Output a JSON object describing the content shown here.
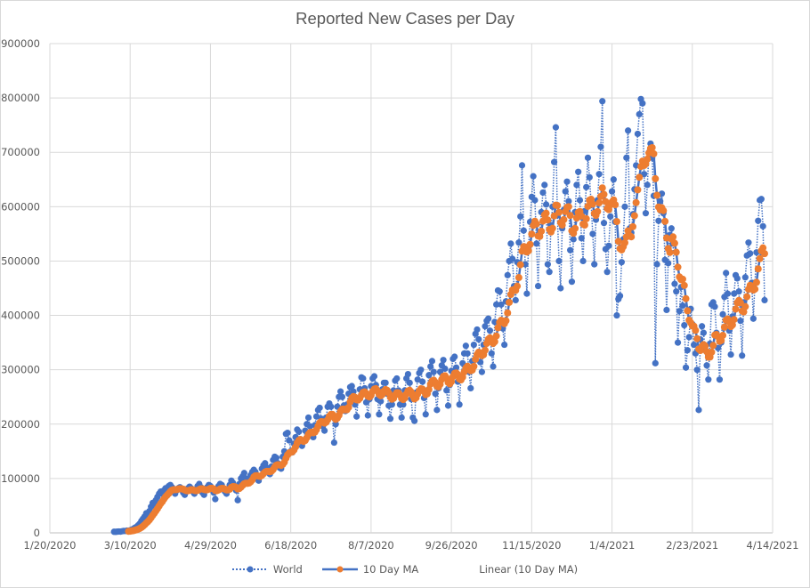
{
  "chart_data": {
    "type": "line",
    "title": "Reported New Cases per Day",
    "xlabel": "",
    "ylabel": "",
    "ylim": [
      0,
      900000
    ],
    "y_ticks": [
      "0",
      "100000",
      "200000",
      "300000",
      "400000",
      "500000",
      "600000",
      "700000",
      "800000",
      "900000"
    ],
    "y_tick_values": [
      0,
      100000,
      200000,
      300000,
      400000,
      500000,
      600000,
      700000,
      800000,
      900000
    ],
    "x_ticks": [
      "1/20/2020",
      "3/10/2020",
      "4/29/2020",
      "6/18/2020",
      "8/7/2020",
      "9/26/2020",
      "11/15/2020",
      "1/4/2021",
      "2/23/2021",
      "4/14/2021"
    ],
    "x_tick_days": [
      0,
      50,
      100,
      150,
      200,
      250,
      300,
      350,
      400,
      450
    ],
    "xlim_days": [
      0,
      450
    ],
    "x_origin_date": "1/20/2020",
    "grid": true,
    "legend_position": "bottom",
    "series": [
      {
        "name": "World",
        "style": "dotted line with circle markers",
        "color": "#4472C4",
        "start_day": 40,
        "values": [
          2000,
          1800,
          2200,
          2500,
          2300,
          3000,
          3600,
          3400,
          4200,
          3800,
          4800,
          6000,
          7500,
          9500,
          11000,
          14000,
          17000,
          22000,
          26000,
          30000,
          36000,
          33000,
          40000,
          48000,
          55000,
          52000,
          60000,
          66000,
          72000,
          76000,
          72000,
          78000,
          82000,
          80000,
          86000,
          88000,
          84000,
          76000,
          72000,
          78000,
          82000,
          84000,
          80000,
          74000,
          70000,
          76000,
          82000,
          85000,
          82000,
          76000,
          72000,
          78000,
          86000,
          90000,
          84000,
          74000,
          70000,
          78000,
          84000,
          88000,
          86000,
          80000,
          74000,
          62000,
          80000,
          86000,
          90000,
          88000,
          82000,
          76000,
          72000,
          80000,
          88000,
          96000,
          92000,
          84000,
          78000,
          60000,
          90000,
          100000,
          104000,
          110000,
          100000,
          92000,
          98000,
          106000,
          112000,
          116000,
          112000,
          102000,
          96000,
          104000,
          118000,
          124000,
          128000,
          120000,
          112000,
          108000,
          122000,
          134000,
          140000,
          138000,
          128000,
          120000,
          118000,
          140000,
          150000,
          182000,
          184000,
          170000,
          150000,
          148000,
          164000,
          176000,
          190000,
          186000,
          168000,
          160000,
          170000,
          188000,
          200000,
          212000,
          196000,
          184000,
          176000,
          198000,
          214000,
          226000,
          230000,
          210000,
          196000,
          188000,
          212000,
          232000,
          238000,
          232000,
          214000,
          166000,
          200000,
          232000,
          250000,
          260000,
          250000,
          234000,
          224000,
          236000,
          256000,
          268000,
          270000,
          260000,
          236000,
          214000,
          246000,
          264000,
          286000,
          284000,
          266000,
          240000,
          216000,
          246000,
          270000,
          284000,
          288000,
          272000,
          246000,
          218000,
          242000,
          264000,
          276000,
          276000,
          256000,
          234000,
          210000,
          236000,
          262000,
          280000,
          284000,
          262000,
          236000,
          212000,
          236000,
          262000,
          284000,
          292000,
          276000,
          246000,
          212000,
          206000,
          258000,
          282000,
          294000,
          300000,
          278000,
          248000,
          218000,
          262000,
          290000,
          306000,
          316000,
          296000,
          256000,
          226000,
          266000,
          296000,
          308000,
          318000,
          302000,
          262000,
          234000,
          272000,
          298000,
          320000,
          324000,
          304000,
          278000,
          236000,
          286000,
          312000,
          330000,
          344000,
          330000,
          296000,
          266000,
          316000,
          346000,
          366000,
          374000,
          356000,
          314000,
          296000,
          346000,
          380000,
          390000,
          394000,
          372000,
          330000,
          306000,
          388000,
          420000,
          446000,
          444000,
          420000,
          376000,
          346000,
          426000,
          474000,
          500000,
          532000,
          504000,
          454000,
          428000,
          498000,
          534000,
          582000,
          676000,
          556000,
          494000,
          440000,
          526000,
          572000,
          618000,
          656000,
          612000,
          532000,
          454000,
          548000,
          590000,
          626000,
          640000,
          604000,
          494000,
          480000,
          566000,
          600000,
          682000,
          746000,
          584000,
          500000,
          450000,
          560000,
          594000,
          628000,
          646000,
          610000,
          520000,
          462000,
          540000,
          590000,
          640000,
          664000,
          612000,
          542000,
          500000,
          592000,
          636000,
          690000,
          654000,
          606000,
          550000,
          494000,
          576000,
          612000,
          660000,
          710000,
          794000,
          570000,
          522000,
          480000,
          528000,
          582000,
          628000,
          650000,
          572000,
          400000,
          430000,
          436000,
          498000,
          540000,
          600000,
          690000,
          740000,
          560000,
          552000,
          586000,
          632000,
          676000,
          734000,
          770000,
          798000,
          790000,
          660000,
          588000,
          640000,
          700000,
          716000,
          690000,
          620000,
          312000,
          494000,
          574000,
          610000,
          624000,
          588000,
          502000,
          410000,
          496000,
          548000,
          560000,
          532000,
          458000,
          444000,
          350000,
          408000,
          452000,
          418000,
          382000,
          304000,
          336000,
          360000,
          412000,
          384000,
          346000,
          330000,
          300000,
          226000,
          356000,
          380000,
          368000,
          336000,
          308000,
          282000,
          348000,
          420000,
          424000,
          416000,
          368000,
          340000,
          282000,
          350000,
          402000,
          434000,
          478000,
          440000,
          372000,
          328000,
          398000,
          440000,
          474000,
          468000,
          444000,
          390000,
          326000,
          424000,
          470000,
          510000,
          534000,
          514000,
          460000,
          394000,
          460000,
          516000,
          574000,
          612000,
          614000,
          564000,
          428000
        ]
      },
      {
        "name": "10 Day MA",
        "style": "solid line with circle markers",
        "color": "#ED7D31",
        "line_color": "#4472C4",
        "start_day": 49
      },
      {
        "name": "Linear (10 Day MA)",
        "style": "trendline (not drawn)",
        "color": "#4472C4"
      }
    ]
  },
  "colors": {
    "world": "#4472C4",
    "ma_marker": "#ED7D31",
    "ma_line": "#4472C4",
    "grid": "#d9d9d9",
    "text": "#595959"
  }
}
